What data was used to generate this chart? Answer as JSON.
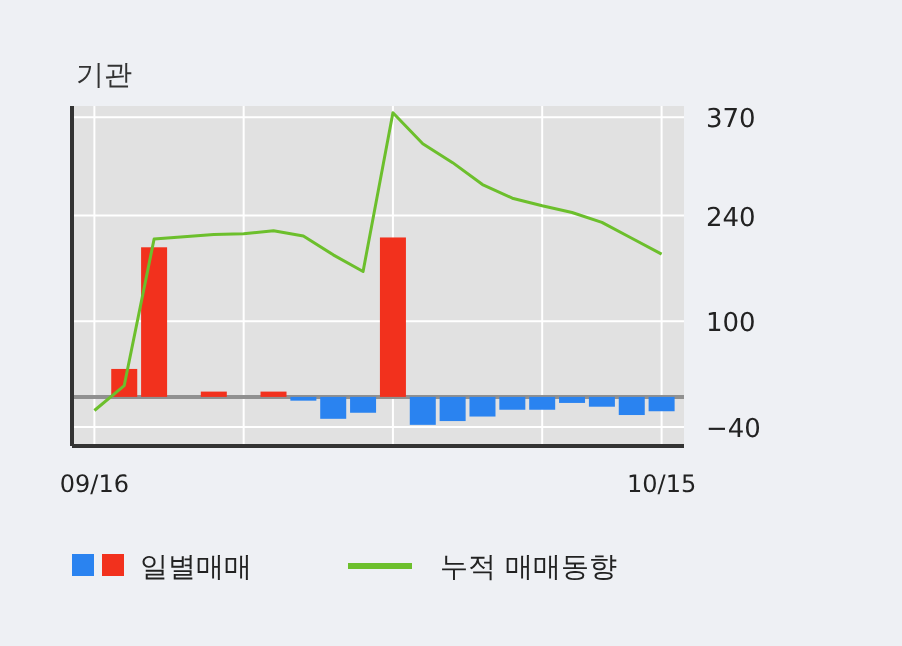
{
  "chart_data": {
    "type": "bar",
    "title": "기관",
    "categories": [
      "09/16",
      null,
      null,
      null,
      null,
      null,
      null,
      null,
      null,
      null,
      null,
      null,
      null,
      null,
      null,
      null,
      null,
      null,
      null,
      "10/15"
    ],
    "series": [
      {
        "name": "일별매매",
        "colors": [
          "#f2311d",
          "#f2311d",
          "#f2311d",
          "#f2311d",
          "#f2311d",
          "#f2311d",
          "#f2311d",
          "#2a83f0",
          "#2a83f0",
          "#2a83f0",
          "#f2311d",
          "#2a83f0",
          "#2a83f0",
          "#2a83f0",
          "#2a83f0",
          "#2a83f0",
          "#2a83f0",
          "#2a83f0",
          "#2a83f0",
          "#2a83f0"
        ],
        "values": [
          null,
          37,
          198,
          0,
          7,
          0,
          7,
          -5,
          -29,
          -21,
          211,
          -37,
          -32,
          -26,
          -17,
          -17,
          -8,
          -13,
          -24,
          -19
        ]
      },
      {
        "name": "누적 매매동향",
        "type": "line",
        "color": "#6cbf2c",
        "values": [
          -18,
          15,
          209,
          212,
          215,
          216,
          220,
          213,
          188,
          166,
          376,
          335,
          310,
          281,
          263,
          253,
          244,
          231,
          210,
          189
        ]
      }
    ],
    "ylim": [
      -65,
      385
    ],
    "yticks": [
      370,
      240,
      100,
      -40
    ],
    "grid": true,
    "legend": "bottom",
    "ref_lines": [
      {
        "axis": "y",
        "value": 0,
        "color": "#909090"
      }
    ]
  }
}
